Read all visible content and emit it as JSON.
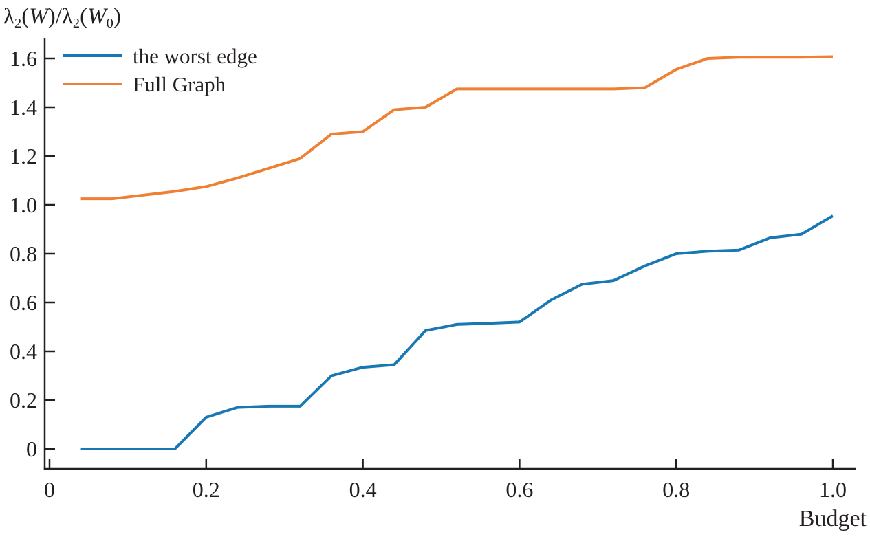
{
  "figure": {
    "background": "#ffffff",
    "axis_color": "#231f20",
    "ylabel_parts": [
      {
        "t": "λ",
        "s": "n"
      },
      {
        "t": "2",
        "s": "sub"
      },
      {
        "t": "(",
        "s": "n"
      },
      {
        "t": "W",
        "s": "it"
      },
      {
        "t": ")/λ",
        "s": "n"
      },
      {
        "t": "2",
        "s": "sub"
      },
      {
        "t": "(",
        "s": "n"
      },
      {
        "t": "W",
        "s": "it"
      },
      {
        "t": "0",
        "s": "sub"
      },
      {
        "t": ")",
        "s": "n"
      }
    ]
  },
  "chart_data": {
    "type": "line",
    "title": "",
    "xlabel": "Budget",
    "ylabel": "λ2(W)/λ2(W0)",
    "xlim": [
      0,
      1.04
    ],
    "ylim": [
      -0.08,
      1.68
    ],
    "grid": false,
    "legend_position": "top-left",
    "x": [
      0.04,
      0.08,
      0.12,
      0.16,
      0.2,
      0.24,
      0.28,
      0.32,
      0.36,
      0.4,
      0.44,
      0.48,
      0.52,
      0.56,
      0.6,
      0.64,
      0.68,
      0.72,
      0.76,
      0.8,
      0.84,
      0.88,
      0.92,
      0.96,
      1.0
    ],
    "series": [
      {
        "name": "the worst edge",
        "color": "#1878b4",
        "values": [
          0,
          0,
          0,
          0,
          0.13,
          0.17,
          0.175,
          0.175,
          0.3,
          0.335,
          0.345,
          0.485,
          0.51,
          0.515,
          0.52,
          0.61,
          0.675,
          0.69,
          0.75,
          0.8,
          0.81,
          0.815,
          0.865,
          0.88,
          0.955
        ]
      },
      {
        "name": "Full Graph",
        "color": "#ef8033",
        "values": [
          1.025,
          1.025,
          1.04,
          1.055,
          1.075,
          1.11,
          1.15,
          1.19,
          1.29,
          1.3,
          1.39,
          1.4,
          1.475,
          1.475,
          1.475,
          1.475,
          1.475,
          1.475,
          1.48,
          1.555,
          1.6,
          1.605,
          1.605,
          1.605,
          1.607
        ]
      }
    ],
    "xticks": [
      0,
      0.2,
      0.4,
      0.6,
      0.8,
      1.0
    ],
    "xtick_labels": [
      "0",
      "0.2",
      "0.4",
      "0.6",
      "0.8",
      "1.0"
    ],
    "yticks": [
      0,
      0.2,
      0.4,
      0.6,
      0.8,
      1.0,
      1.2,
      1.4,
      1.6
    ],
    "ytick_labels": [
      "0",
      "0.2",
      "0.4",
      "0.6",
      "0.8",
      "1.0",
      "1.2",
      "1.4",
      "1.6"
    ]
  }
}
